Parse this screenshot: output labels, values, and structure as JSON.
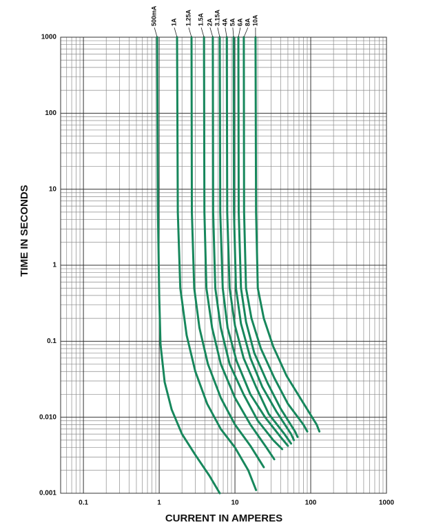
{
  "chart_data": {
    "type": "line",
    "xlabel": "CURRENT IN AMPERES",
    "ylabel": "TIME IN SECONDS",
    "xscale": "log",
    "yscale": "log",
    "grid": true,
    "xlim": [
      0.05,
      1000
    ],
    "ylim": [
      0.001,
      1000
    ],
    "xticks": [
      0.1,
      1,
      10,
      100,
      1000
    ],
    "yticks": [
      0.001,
      {
        "value": 0.01,
        "label": "0.010"
      },
      0.1,
      1,
      10,
      100,
      1000
    ],
    "series": [
      {
        "name": "500mA",
        "color": "#17875c",
        "x": [
          0.94,
          0.96,
          1.0,
          1.04,
          1.18,
          1.46,
          2.0,
          3.0,
          4.6,
          6.3
        ],
        "values": [
          1000,
          5.9,
          0.39,
          0.091,
          0.029,
          0.0126,
          0.006,
          0.0032,
          0.0017,
          0.001
        ]
      },
      {
        "name": "1A",
        "color": "#17875c",
        "x": [
          1.72,
          1.76,
          1.9,
          2.3,
          3.0,
          4.3,
          6.5,
          10,
          15,
          19
        ],
        "values": [
          1000,
          5,
          0.5,
          0.12,
          0.04,
          0.015,
          0.007,
          0.004,
          0.002,
          0.0011
        ]
      },
      {
        "name": "1.25A",
        "color": "#17875c",
        "x": [
          2.67,
          2.7,
          2.9,
          3.4,
          4.4,
          6.5,
          10,
          16,
          24
        ],
        "values": [
          1000,
          5,
          0.5,
          0.15,
          0.05,
          0.018,
          0.008,
          0.0042,
          0.0022
        ]
      },
      {
        "name": "1.5A",
        "color": "#17875c",
        "x": [
          3.9,
          3.95,
          4.2,
          5,
          6.5,
          10,
          16,
          26,
          33
        ],
        "values": [
          1000,
          5,
          0.5,
          0.15,
          0.05,
          0.018,
          0.008,
          0.004,
          0.0028
        ]
      },
      {
        "name": "2A",
        "color": "#17875c",
        "x": [
          5.1,
          5.15,
          5.5,
          6.5,
          8.5,
          13,
          20,
          32,
          42
        ],
        "values": [
          1000,
          5,
          0.5,
          0.15,
          0.05,
          0.02,
          0.009,
          0.005,
          0.0038
        ]
      },
      {
        "name": "3.15A",
        "color": "#17875c",
        "x": [
          6.3,
          6.4,
          6.9,
          8,
          10.5,
          16,
          25,
          40,
          50
        ],
        "values": [
          1000,
          5,
          0.5,
          0.15,
          0.055,
          0.02,
          0.01,
          0.0055,
          0.0042
        ]
      },
      {
        "name": "4A",
        "color": "#17875c",
        "x": [
          7.8,
          7.9,
          8.5,
          10,
          13,
          19,
          28,
          45,
          55
        ],
        "values": [
          1000,
          5,
          0.5,
          0.16,
          0.06,
          0.025,
          0.011,
          0.006,
          0.0045
        ]
      },
      {
        "name": "5A",
        "color": "#17875c",
        "x": [
          9.6,
          9.7,
          10.3,
          12,
          16,
          23,
          35,
          55,
          60
        ],
        "values": [
          1000,
          5,
          0.5,
          0.17,
          0.06,
          0.025,
          0.012,
          0.006,
          0.005
        ]
      },
      {
        "name": "6A",
        "color": "#17875c",
        "x": [
          11.1,
          11.2,
          12,
          14,
          18,
          27,
          40,
          62,
          67
        ],
        "values": [
          1000,
          5,
          0.5,
          0.18,
          0.07,
          0.028,
          0.013,
          0.0065,
          0.0055
        ]
      },
      {
        "name": "8A",
        "color": "#17875c",
        "x": [
          13.1,
          13.2,
          14,
          16.5,
          22,
          33,
          50,
          80,
          90
        ],
        "values": [
          1000,
          5,
          0.5,
          0.2,
          0.08,
          0.033,
          0.015,
          0.008,
          0.0065
        ]
      },
      {
        "name": "10A",
        "color": "#17875c",
        "x": [
          18.7,
          19,
          20,
          24,
          32,
          48,
          75,
          120,
          130
        ],
        "values": [
          1000,
          5,
          0.5,
          0.2,
          0.085,
          0.035,
          0.017,
          0.008,
          0.0065
        ]
      }
    ]
  }
}
